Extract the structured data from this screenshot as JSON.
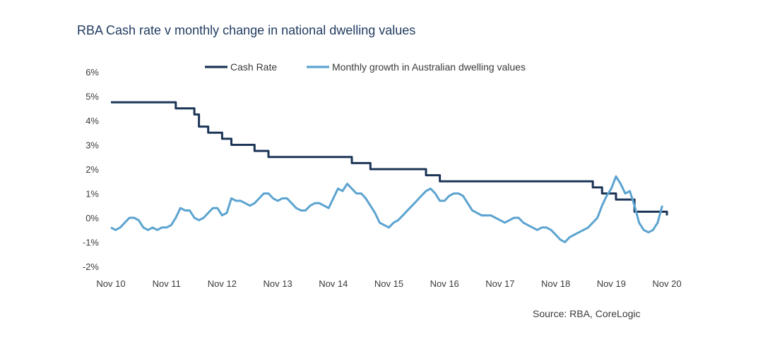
{
  "chart_data": {
    "type": "line",
    "title": "RBA Cash rate v monthly  change in national dwelling values",
    "source": "Source: RBA, CoreLogic",
    "xlabel": "",
    "ylabel": "",
    "ylim": [
      -2,
      6
    ],
    "yticks": [
      "6%",
      "5%",
      "4%",
      "3%",
      "2%",
      "1%",
      "0%",
      "-1%",
      "-2%"
    ],
    "yticks_values": [
      6,
      5,
      4,
      3,
      2,
      1,
      0,
      -1,
      -2
    ],
    "xticks": [
      "Nov 10",
      "Nov 11",
      "Nov 12",
      "Nov 13",
      "Nov 14",
      "Nov 15",
      "Nov 16",
      "Nov 17",
      "Nov 18",
      "Nov 19",
      "Nov 20"
    ],
    "xlim_months": [
      0,
      120
    ],
    "legend_position": "top-center",
    "colors": {
      "cash": "#1c3557",
      "growth": "#5ba3d0"
    },
    "series": [
      {
        "name": "Cash Rate",
        "color": "#1c3557",
        "x": [
          0,
          12,
          14,
          18,
          19,
          21,
          22,
          23,
          24,
          25,
          26,
          27,
          28,
          29,
          30,
          31,
          32,
          33,
          34,
          35,
          51,
          52,
          53,
          54,
          55,
          56,
          57,
          58,
          59,
          60,
          61,
          63,
          64,
          65,
          66,
          67,
          68,
          69,
          70,
          71,
          103,
          104,
          106,
          107,
          108,
          109,
          110,
          111,
          112,
          113,
          118,
          119,
          120
        ],
        "y": [
          4.75,
          4.75,
          4.5,
          4.25,
          3.75,
          3.5,
          3.5,
          3.5,
          3.25,
          3.25,
          3.0,
          3.0,
          3.0,
          3.0,
          3.0,
          2.75,
          2.75,
          2.75,
          2.5,
          2.5,
          2.5,
          2.25,
          2.25,
          2.25,
          2.25,
          2.0,
          2.0,
          2.0,
          2.0,
          2.0,
          2.0,
          2.0,
          2.0,
          2.0,
          2.0,
          2.0,
          1.75,
          1.75,
          1.75,
          1.5,
          1.5,
          1.25,
          1.0,
          1.0,
          1.0,
          0.75,
          0.75,
          0.75,
          0.75,
          0.25,
          0.25,
          0.25,
          0.1
        ]
      },
      {
        "name": "Monthly growth in Australian dwelling values",
        "color": "#5ba3d0",
        "x": [
          0,
          1,
          2,
          3,
          4,
          5,
          6,
          7,
          8,
          9,
          10,
          11,
          12,
          13,
          14,
          15,
          16,
          17,
          18,
          19,
          20,
          21,
          22,
          23,
          24,
          25,
          26,
          27,
          28,
          29,
          30,
          31,
          32,
          33,
          34,
          35,
          36,
          37,
          38,
          39,
          40,
          41,
          42,
          43,
          44,
          45,
          46,
          47,
          48,
          49,
          50,
          51,
          52,
          53,
          54,
          55,
          56,
          57,
          58,
          59,
          60,
          61,
          62,
          63,
          64,
          65,
          66,
          67,
          68,
          69,
          70,
          71,
          72,
          73,
          74,
          75,
          76,
          77,
          78,
          79,
          80,
          81,
          82,
          83,
          84,
          85,
          86,
          87,
          88,
          89,
          90,
          91,
          92,
          93,
          94,
          95,
          96,
          97,
          98,
          99,
          100,
          101,
          102,
          103,
          104,
          105,
          106,
          107,
          108,
          109,
          110,
          111,
          112,
          113,
          114,
          115,
          116,
          117,
          118,
          119
        ],
        "y": [
          -0.4,
          -0.5,
          -0.4,
          -0.2,
          0.0,
          0.0,
          -0.1,
          -0.4,
          -0.5,
          -0.4,
          -0.5,
          -0.4,
          -0.4,
          -0.3,
          0.0,
          0.4,
          0.3,
          0.3,
          0.0,
          -0.1,
          0.0,
          0.2,
          0.4,
          0.4,
          0.1,
          0.2,
          0.8,
          0.7,
          0.7,
          0.6,
          0.5,
          0.6,
          0.8,
          1.0,
          1.0,
          0.8,
          0.7,
          0.8,
          0.8,
          0.6,
          0.4,
          0.3,
          0.3,
          0.5,
          0.6,
          0.6,
          0.5,
          0.4,
          0.8,
          1.2,
          1.1,
          1.4,
          1.2,
          1.0,
          1.0,
          0.8,
          0.5,
          0.2,
          -0.2,
          -0.3,
          -0.4,
          -0.2,
          -0.1,
          0.1,
          0.3,
          0.5,
          0.7,
          0.9,
          1.1,
          1.2,
          1.0,
          0.7,
          0.7,
          0.9,
          1.0,
          1.0,
          0.9,
          0.6,
          0.3,
          0.2,
          0.1,
          0.1,
          0.1,
          0.0,
          -0.1,
          -0.2,
          -0.1,
          0.0,
          0.0,
          -0.2,
          -0.3,
          -0.4,
          -0.5,
          -0.4,
          -0.4,
          -0.5,
          -0.7,
          -0.9,
          -1.0,
          -0.8,
          -0.7,
          -0.6,
          -0.5,
          -0.4,
          -0.2,
          0.0,
          0.5,
          0.9,
          1.2,
          1.7,
          1.4,
          1.0,
          1.1,
          0.5,
          -0.2,
          -0.5,
          -0.6,
          -0.5,
          -0.2,
          0.5
        ]
      }
    ]
  }
}
